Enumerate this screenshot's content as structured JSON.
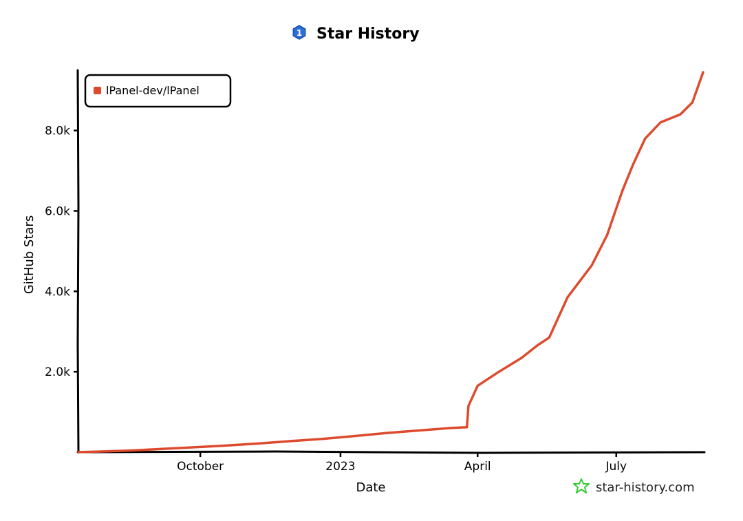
{
  "chart_data": {
    "type": "line",
    "title": "Star History",
    "xlabel": "Date",
    "ylabel": "GitHub Stars",
    "x_range": [
      "2022-07-13",
      "2023-08-27"
    ],
    "ylim": [
      0,
      9500
    ],
    "x_ticks": [
      {
        "date": "2022-10-01",
        "label": "October"
      },
      {
        "date": "2023-01-01",
        "label": "2023"
      },
      {
        "date": "2023-04-01",
        "label": "April"
      },
      {
        "date": "2023-07-01",
        "label": "July"
      }
    ],
    "y_ticks": [
      {
        "value": 2000,
        "label": "2.0k"
      },
      {
        "value": 4000,
        "label": "4.0k"
      },
      {
        "value": 6000,
        "label": "6.0k"
      },
      {
        "value": 8000,
        "label": "8.0k"
      }
    ],
    "legend": {
      "position": "top-left"
    },
    "grid": false,
    "series": [
      {
        "name": "lPanel-dev/lPanel",
        "color": "#dd4b2e",
        "points": [
          [
            "2022-07-13",
            0
          ],
          [
            "2022-08-15",
            40
          ],
          [
            "2022-09-15",
            100
          ],
          [
            "2022-10-15",
            160
          ],
          [
            "2022-11-10",
            220
          ],
          [
            "2022-12-01",
            280
          ],
          [
            "2022-12-20",
            330
          ],
          [
            "2023-01-10",
            400
          ],
          [
            "2023-02-01",
            480
          ],
          [
            "2023-02-25",
            550
          ],
          [
            "2023-03-14",
            600
          ],
          [
            "2023-03-25",
            620
          ],
          [
            "2023-03-26",
            1150
          ],
          [
            "2023-04-01",
            1650
          ],
          [
            "2023-04-15",
            2000
          ],
          [
            "2023-04-30",
            2350
          ],
          [
            "2023-05-10",
            2650
          ],
          [
            "2023-05-18",
            2850
          ],
          [
            "2023-05-30",
            3850
          ],
          [
            "2023-06-15",
            4650
          ],
          [
            "2023-06-25",
            5400
          ],
          [
            "2023-07-05",
            6500
          ],
          [
            "2023-07-12",
            7150
          ],
          [
            "2023-07-20",
            7800
          ],
          [
            "2023-07-30",
            8200
          ],
          [
            "2023-08-12",
            8400
          ],
          [
            "2023-08-20",
            8700
          ],
          [
            "2023-08-27",
            9450
          ]
        ]
      }
    ]
  },
  "branding": {
    "logo_icon": "star-history-logo-icon",
    "text": "star-history.com",
    "color": "#33cc33"
  }
}
